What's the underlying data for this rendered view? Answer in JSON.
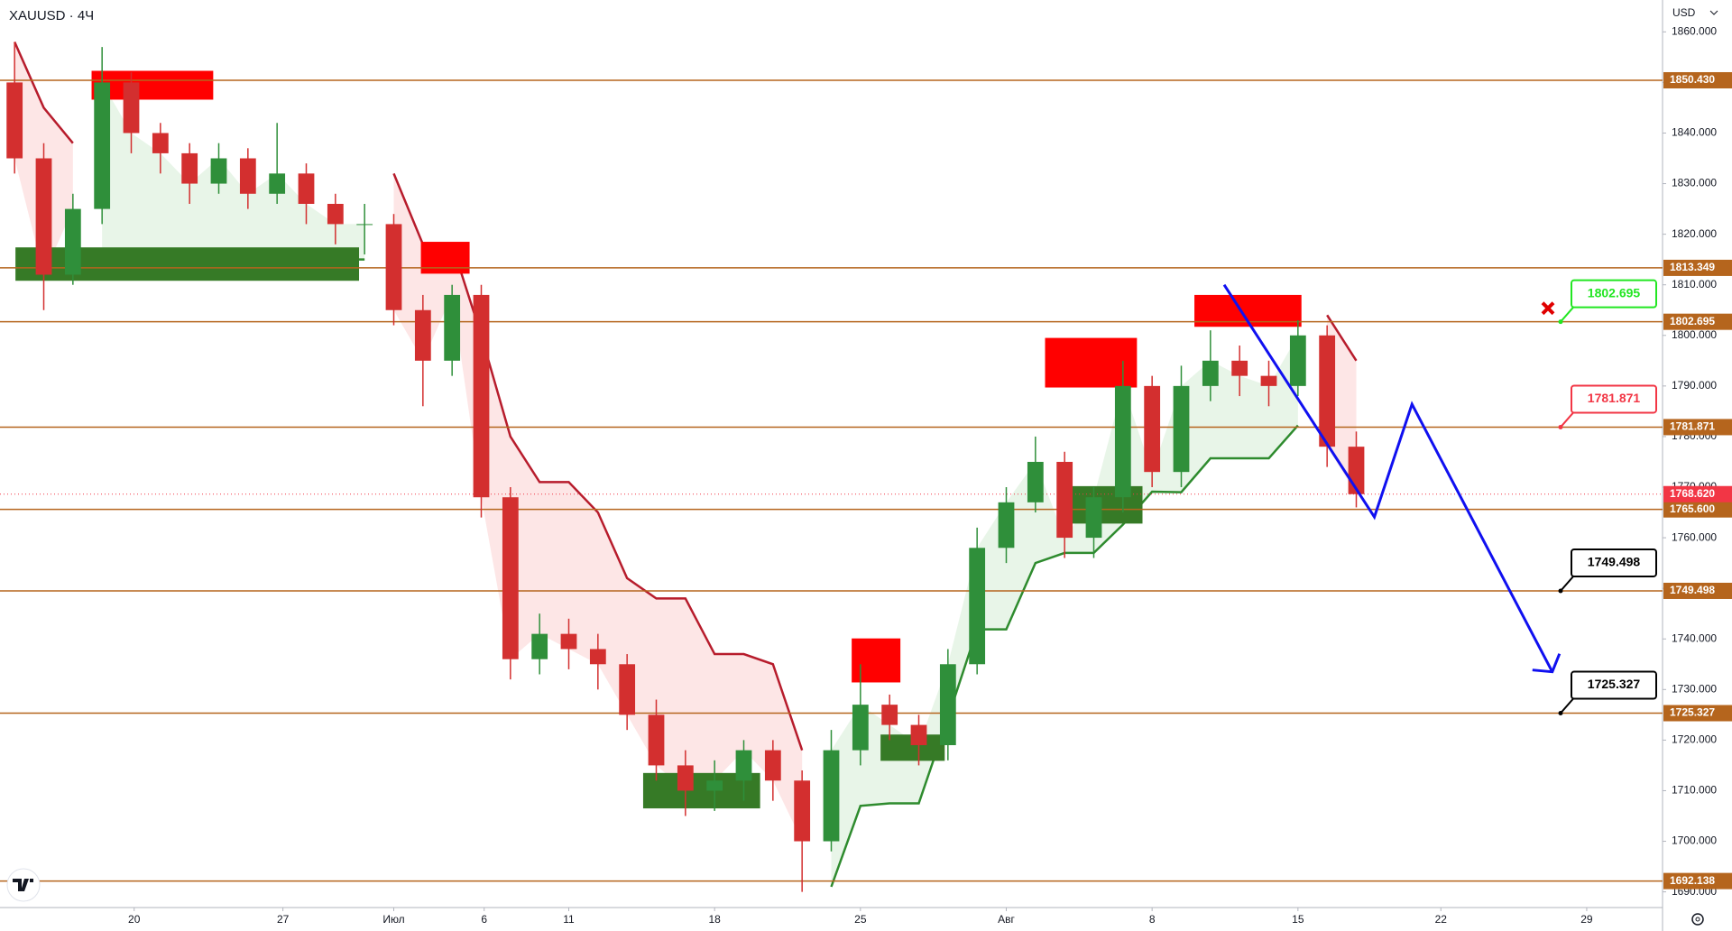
{
  "chart_data": {
    "type": "candlestick",
    "title": "XAUUSD · 4Ч",
    "currency": "USD",
    "xlim": [
      0,
      57
    ],
    "ylim": [
      1686.9,
      1866.3
    ],
    "xticks": [
      {
        "value": 4.6,
        "label": "20"
      },
      {
        "value": 9.7,
        "label": "27"
      },
      {
        "value": 13.5,
        "label": "Июл"
      },
      {
        "value": 16.6,
        "label": "6"
      },
      {
        "value": 19.5,
        "label": "11"
      },
      {
        "value": 24.5,
        "label": "18"
      },
      {
        "value": 29.5,
        "label": "25"
      },
      {
        "value": 34.5,
        "label": "Авг"
      },
      {
        "value": 39.5,
        "label": "8"
      },
      {
        "value": 44.5,
        "label": "15"
      },
      {
        "value": 49.4,
        "label": "22"
      },
      {
        "value": 54.4,
        "label": "29"
      }
    ],
    "yticks": [
      {
        "value": 1690,
        "label": "1690.000"
      },
      {
        "value": 1700,
        "label": "1700.000"
      },
      {
        "value": 1710,
        "label": "1710.000"
      },
      {
        "value": 1720,
        "label": "1720.000"
      },
      {
        "value": 1730,
        "label": "1730.000"
      },
      {
        "value": 1740,
        "label": "1740.000"
      },
      {
        "value": 1750,
        "label": "1750.000"
      },
      {
        "value": 1760,
        "label": "1760.000"
      },
      {
        "value": 1770,
        "label": "1770.000"
      },
      {
        "value": 1780,
        "label": "1780.000"
      },
      {
        "value": 1790,
        "label": "1790.000"
      },
      {
        "value": 1800,
        "label": "1800.000"
      },
      {
        "value": 1810,
        "label": "1810.000"
      },
      {
        "value": 1820,
        "label": "1820.000"
      },
      {
        "value": 1830,
        "label": "1830.000"
      },
      {
        "value": 1840,
        "label": "1840.000"
      },
      {
        "value": 1850,
        "label": "1850.000"
      },
      {
        "value": 1860,
        "label": "1860.000"
      }
    ],
    "up_color": "#2f8f3a",
    "down_color": "#d32f2f",
    "open": [
      1850,
      1835,
      1812,
      1825,
      1850,
      1840,
      1836,
      1830,
      1835,
      1828,
      1832,
      1826,
      1822,
      1822,
      1805,
      1795,
      1808,
      1768,
      1736,
      1741,
      1738,
      1735,
      1725,
      1715,
      1710,
      1712,
      1718,
      1712,
      1700,
      1718,
      1727,
      1723,
      1719,
      1735,
      1758,
      1767,
      1775,
      1760,
      1768,
      1790,
      1773,
      1790,
      1795,
      1792,
      1790,
      1800,
      1778
    ],
    "high": [
      1858,
      1838,
      1828,
      1857,
      1852,
      1842,
      1838,
      1838,
      1837,
      1842,
      1834,
      1828,
      1826,
      1824,
      1808,
      1810,
      1810,
      1770,
      1745,
      1744,
      1741,
      1737,
      1728,
      1718,
      1716,
      1720,
      1720,
      1714,
      1722,
      1735,
      1729,
      1725,
      1738,
      1762,
      1770,
      1780,
      1777,
      1770,
      1795,
      1792,
      1794,
      1801,
      1798,
      1795,
      1803,
      1802,
      1781
    ],
    "low": [
      1832,
      1805,
      1810,
      1822,
      1836,
      1832,
      1826,
      1828,
      1825,
      1826,
      1822,
      1818,
      1816,
      1802,
      1786,
      1792,
      1764,
      1732,
      1733,
      1734,
      1730,
      1722,
      1712,
      1705,
      1706,
      1708,
      1708,
      1690,
      1698,
      1715,
      1720,
      1715,
      1716,
      1733,
      1755,
      1765,
      1756,
      1756,
      1765,
      1770,
      1770,
      1787,
      1788,
      1786,
      1788,
      1774,
      1766
    ],
    "close": [
      1835,
      1812,
      1825,
      1850,
      1840,
      1836,
      1830,
      1835,
      1828,
      1832,
      1826,
      1822,
      1822,
      1805,
      1795,
      1808,
      1768,
      1736,
      1741,
      1738,
      1735,
      1725,
      1715,
      1710,
      1712,
      1718,
      1712,
      1700,
      1718,
      1727,
      1723,
      1719,
      1735,
      1758,
      1767,
      1775,
      1760,
      1768,
      1790,
      1773,
      1790,
      1795,
      1792,
      1790,
      1800,
      1778,
      1768.62
    ],
    "trend": [
      {
        "color": "#b71c2c",
        "fill": "#fde3e3",
        "values": [
          1858,
          1845,
          1838,
          null,
          null,
          null,
          null,
          null,
          null,
          null,
          null,
          null,
          null,
          1832,
          1818,
          1818,
          1800,
          1780,
          1771,
          1771,
          1765,
          1752,
          1748,
          1748,
          1737,
          1737,
          1735,
          1718,
          null,
          null,
          null,
          null,
          null,
          null,
          null,
          null,
          null,
          null,
          null,
          null,
          null,
          null,
          null,
          null,
          null,
          1804,
          1795
        ]
      },
      {
        "color": "#2e8b2e",
        "fill": "#e6f4e6",
        "values": [
          null,
          null,
          null,
          1813,
          1813,
          1814,
          1815,
          1815,
          1815,
          1815,
          1815,
          1815,
          1815,
          null,
          null,
          null,
          null,
          null,
          null,
          null,
          null,
          null,
          null,
          null,
          null,
          null,
          null,
          null,
          1691,
          1707,
          1707.5,
          1707.5,
          1724.4,
          1741.9,
          1741.9,
          1755,
          1757,
          1757,
          1762.6,
          1769.1,
          1769,
          1775.7,
          1775.7,
          1775.7,
          1782.2,
          null,
          null
        ]
      }
    ],
    "zones": [
      {
        "x": [
          3.14,
          7.31
        ],
        "y": [
          1846.6,
          1852.3
        ],
        "color": "#ff0000"
      },
      {
        "x": [
          14.43,
          16.1
        ],
        "y": [
          1812.2,
          1818.5
        ],
        "color": "#ff0000"
      },
      {
        "x": [
          35.83,
          38.98
        ],
        "y": [
          1789.7,
          1799.5
        ],
        "color": "#ff0000"
      },
      {
        "x": [
          40.95,
          44.62
        ],
        "y": [
          1801.7,
          1808
        ],
        "color": "#ff0000"
      },
      {
        "x": [
          29.2,
          30.87
        ],
        "y": [
          1731.4,
          1740.1
        ],
        "color": "#ff0000"
      },
      {
        "x": [
          0.53,
          12.31
        ],
        "y": [
          1810.8,
          1817.4
        ],
        "color": "#367a26"
      },
      {
        "x": [
          22.05,
          26.06
        ],
        "y": [
          1706.5,
          1713.5
        ],
        "color": "#367a26"
      },
      {
        "x": [
          30.19,
          32.39
        ],
        "y": [
          1715.9,
          1721.1
        ],
        "color": "#367a26"
      },
      {
        "x": [
          36.36,
          39.17
        ],
        "y": [
          1762.8,
          1770.2
        ],
        "color": "#367a26"
      }
    ],
    "level_color": "#b5651d",
    "levels": [
      {
        "value": 1850.43,
        "label": "1850.430"
      },
      {
        "value": 1813.349,
        "label": "1813.349"
      },
      {
        "value": 1802.695,
        "label": "1802.695"
      },
      {
        "value": 1781.871,
        "label": "1781.871"
      },
      {
        "value": 1765.6,
        "label": "1765.600"
      },
      {
        "value": 1749.498,
        "label": "1749.498"
      },
      {
        "value": 1725.327,
        "label": "1725.327"
      },
      {
        "value": 1692.138,
        "label": "1692.138"
      }
    ],
    "price": {
      "value": 1768.62,
      "label": "1768.620",
      "color": "#f23645"
    },
    "callouts": [
      {
        "value": 1802.695,
        "label": "1802.695",
        "color": "#22e622"
      },
      {
        "value": 1781.871,
        "label": "1781.871",
        "color": "#f23645"
      },
      {
        "value": 1749.498,
        "label": "1749.498",
        "color": "#000000"
      },
      {
        "value": 1725.327,
        "label": "1725.327",
        "color": "#000000"
      }
    ],
    "projection": {
      "x": [
        41.97,
        47.12,
        48.41,
        53.22
      ],
      "values": [
        1810,
        1764.1,
        1786.4,
        1733.5
      ],
      "color": "#1010f0"
    }
  }
}
